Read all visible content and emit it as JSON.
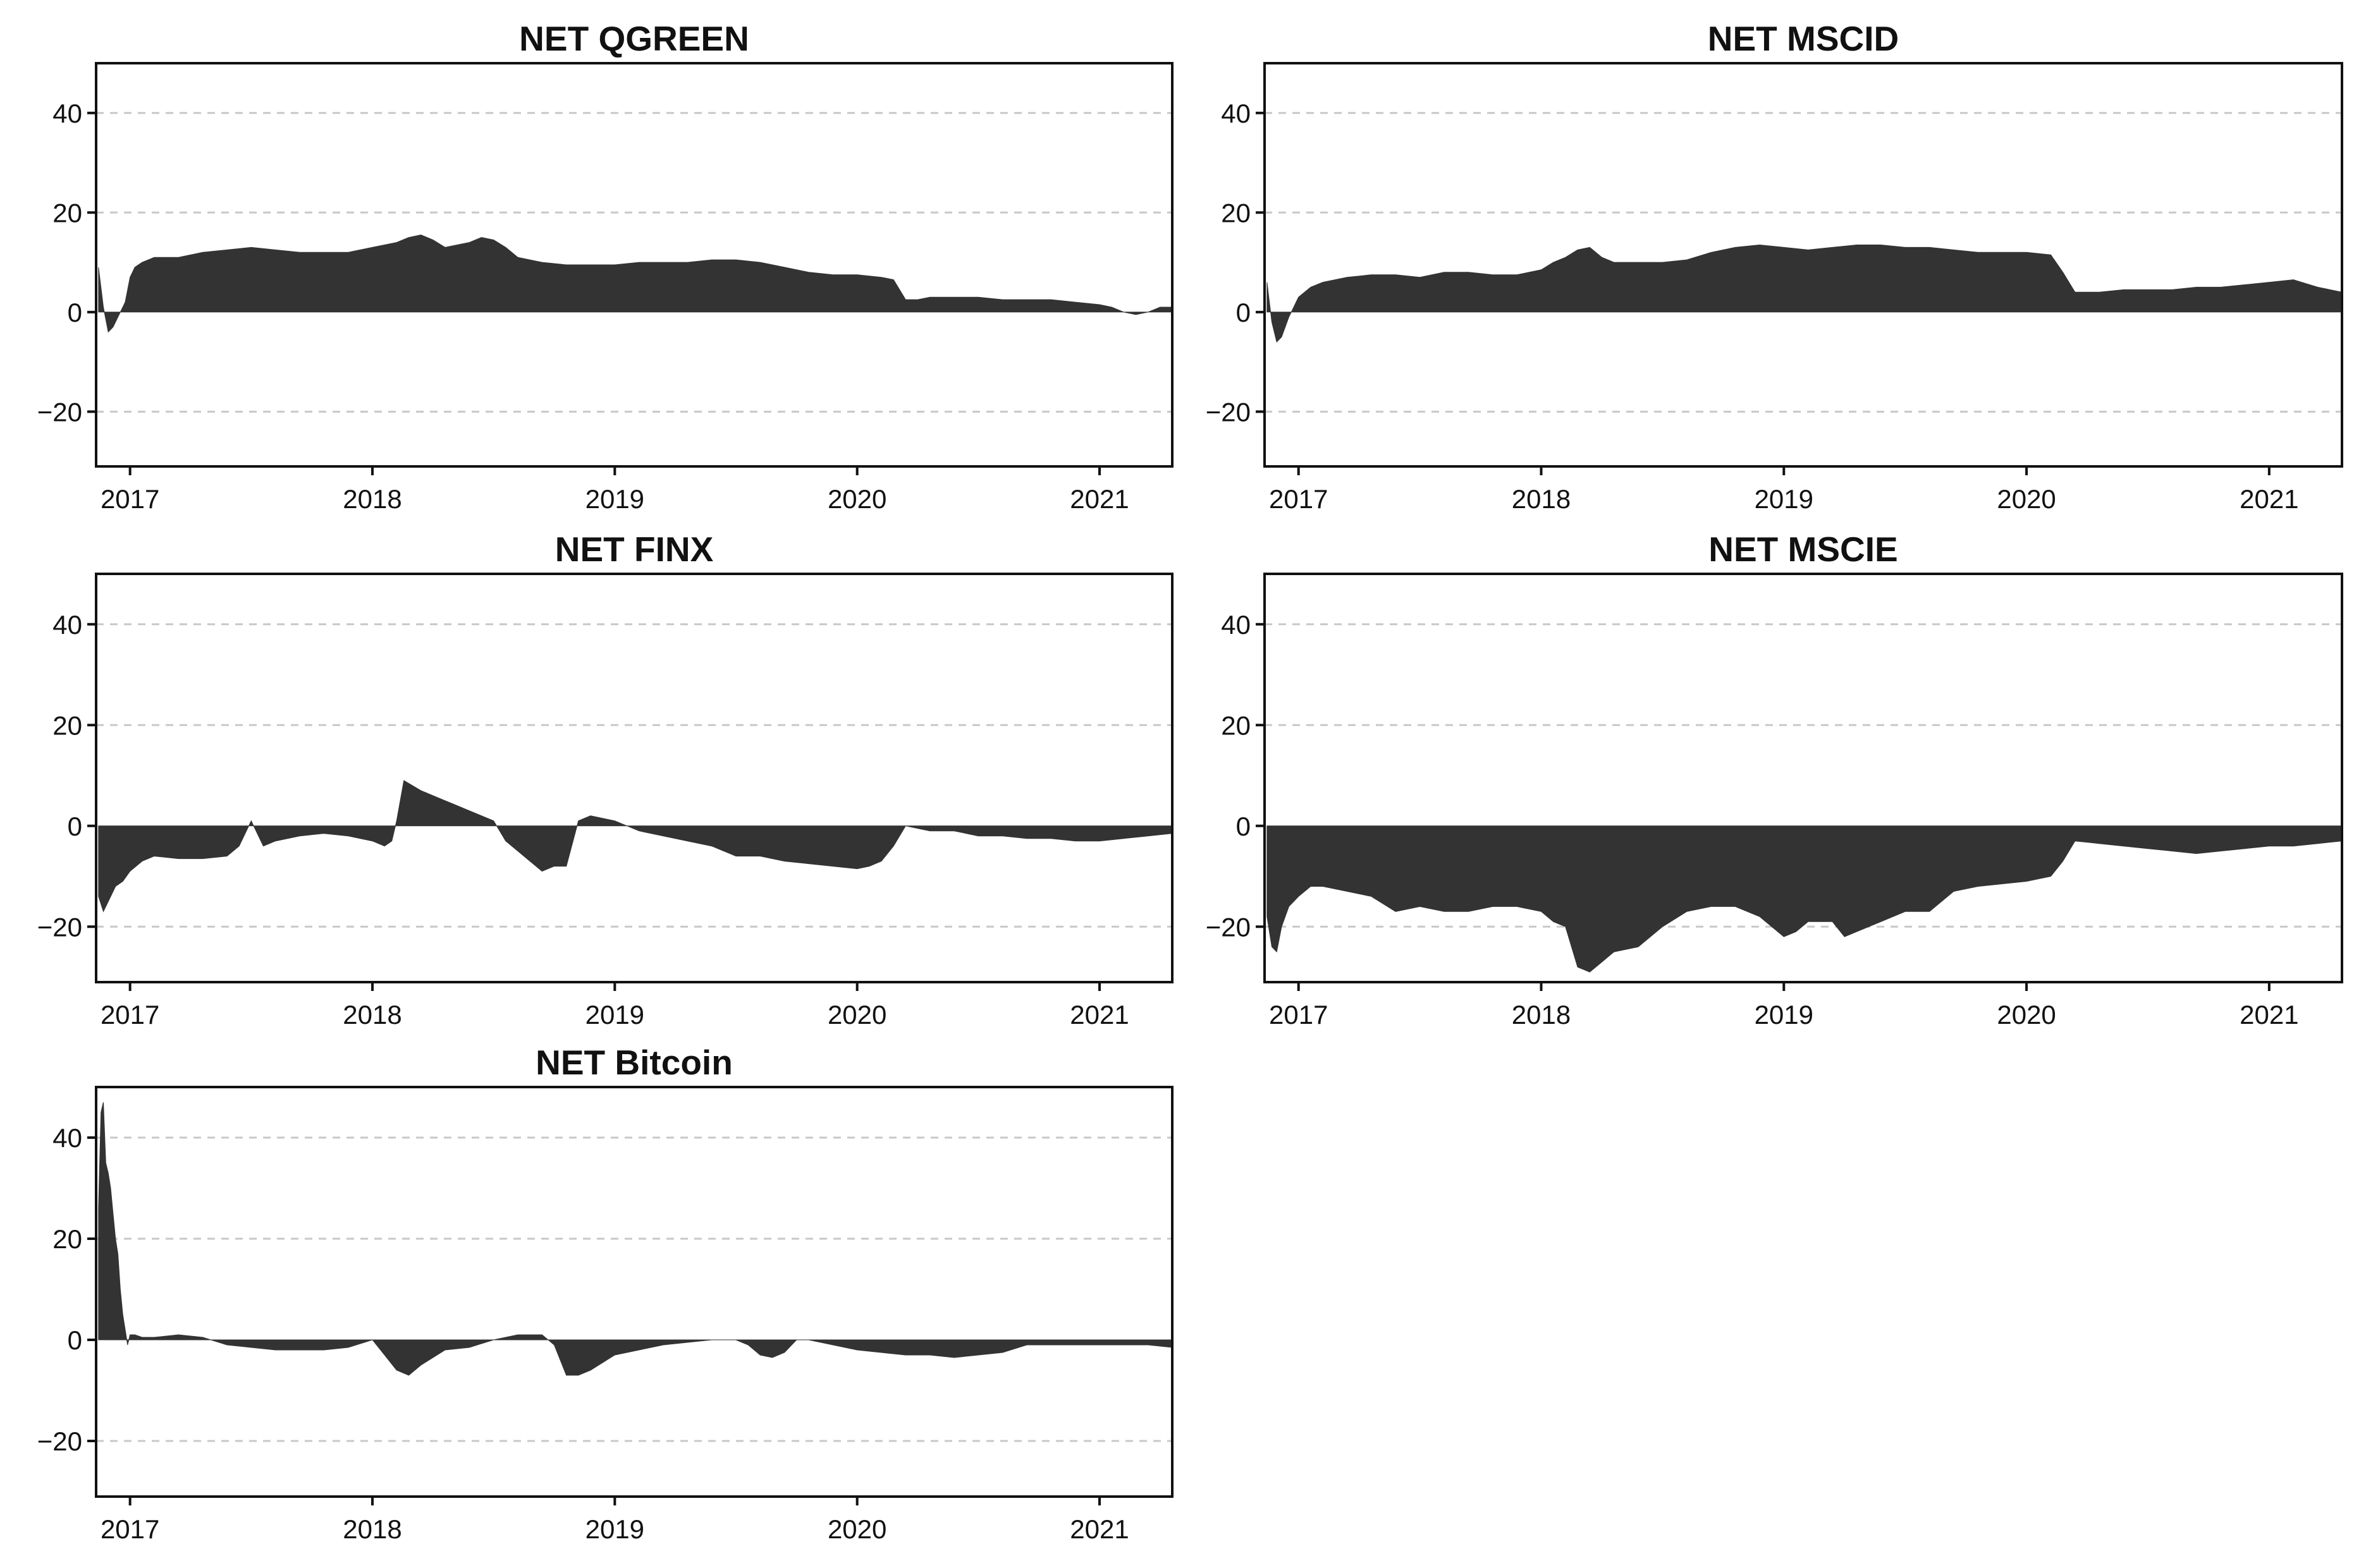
{
  "chart_data": [
    {
      "type": "area",
      "title": "NET QGREEN",
      "xlabel": "",
      "ylabel": "",
      "xlim": [
        2016.86,
        2021.3
      ],
      "ylim": [
        -31,
        50
      ],
      "grid": true,
      "x_ticks": [
        2017,
        2018,
        2019,
        2020,
        2021
      ],
      "x_tick_labels": [
        "2017",
        "2018",
        "2019",
        "2020",
        "2021"
      ],
      "y_ticks": [
        40,
        20,
        0,
        -20
      ],
      "y_tick_labels": [
        "40",
        "20",
        "0",
        "−20"
      ],
      "series": [
        {
          "x": [
            2016.87,
            2016.89,
            2016.91,
            2016.93,
            2016.96,
            2016.98,
            2017.0,
            2017.02,
            2017.05,
            2017.1,
            2017.2,
            2017.3,
            2017.4,
            2017.5,
            2017.6,
            2017.7,
            2017.8,
            2017.9,
            2018.0,
            2018.05,
            2018.1,
            2018.15,
            2018.2,
            2018.25,
            2018.3,
            2018.35,
            2018.4,
            2018.45,
            2018.5,
            2018.55,
            2018.6,
            2018.7,
            2018.8,
            2018.9,
            2019.0,
            2019.1,
            2019.2,
            2019.3,
            2019.4,
            2019.5,
            2019.6,
            2019.7,
            2019.8,
            2019.9,
            2020.0,
            2020.1,
            2020.15,
            2020.2,
            2020.25,
            2020.3,
            2020.4,
            2020.5,
            2020.6,
            2020.7,
            2020.8,
            2020.9,
            2021.0,
            2021.05,
            2021.1,
            2021.15,
            2021.2,
            2021.25,
            2021.3
          ],
          "y": [
            9,
            1,
            -4,
            -3,
            0,
            2,
            7,
            9,
            10,
            11,
            11,
            12,
            12.5,
            13,
            12.5,
            12,
            12,
            12,
            13,
            13.5,
            14,
            15,
            15.5,
            14.5,
            13,
            13.5,
            14,
            15,
            14.5,
            13,
            11,
            10,
            9.5,
            9.5,
            9.5,
            10,
            10,
            10,
            10.5,
            10.5,
            10,
            9,
            8,
            7.5,
            7.5,
            7,
            6.5,
            2.5,
            2.5,
            3,
            3,
            3,
            2.5,
            2.5,
            2.5,
            2,
            1.5,
            1,
            0,
            -0.5,
            0,
            1,
            1
          ]
        }
      ]
    },
    {
      "type": "area",
      "title": "NET MSCID",
      "xlabel": "",
      "ylabel": "",
      "xlim": [
        2016.86,
        2021.3
      ],
      "ylim": [
        -31,
        50
      ],
      "grid": true,
      "x_ticks": [
        2017,
        2018,
        2019,
        2020,
        2021
      ],
      "x_tick_labels": [
        "2017",
        "2018",
        "2019",
        "2020",
        "2021"
      ],
      "y_ticks": [
        40,
        20,
        0,
        -20
      ],
      "y_tick_labels": [
        "40",
        "20",
        "0",
        "−20"
      ],
      "series": [
        {
          "x": [
            2016.87,
            2016.89,
            2016.91,
            2016.93,
            2016.96,
            2016.98,
            2017.0,
            2017.05,
            2017.1,
            2017.2,
            2017.3,
            2017.4,
            2017.5,
            2017.6,
            2017.7,
            2017.8,
            2017.9,
            2018.0,
            2018.05,
            2018.1,
            2018.15,
            2018.2,
            2018.25,
            2018.3,
            2018.4,
            2018.5,
            2018.6,
            2018.7,
            2018.8,
            2018.9,
            2019.0,
            2019.1,
            2019.2,
            2019.3,
            2019.4,
            2019.5,
            2019.6,
            2019.7,
            2019.8,
            2019.9,
            2020.0,
            2020.1,
            2020.15,
            2020.2,
            2020.3,
            2020.4,
            2020.5,
            2020.6,
            2020.7,
            2020.8,
            2020.9,
            2021.0,
            2021.1,
            2021.2,
            2021.3
          ],
          "y": [
            6,
            -2,
            -6,
            -5,
            -1,
            1,
            3,
            5,
            6,
            7,
            7.5,
            7.5,
            7,
            8,
            8,
            7.5,
            7.5,
            8.5,
            10,
            11,
            12.5,
            13,
            11,
            10,
            10,
            10,
            10.5,
            12,
            13,
            13.5,
            13,
            12.5,
            13,
            13.5,
            13.5,
            13,
            13,
            12.5,
            12,
            12,
            12,
            11.5,
            8,
            4,
            4,
            4.5,
            4.5,
            4.5,
            5,
            5,
            5.5,
            6,
            6.5,
            5,
            4
          ]
        }
      ]
    },
    {
      "type": "area",
      "title": "NET FINX",
      "xlabel": "",
      "ylabel": "",
      "xlim": [
        2016.86,
        2021.3
      ],
      "ylim": [
        -31,
        50
      ],
      "grid": true,
      "x_ticks": [
        2017,
        2018,
        2019,
        2020,
        2021
      ],
      "x_tick_labels": [
        "2017",
        "2018",
        "2019",
        "2020",
        "2021"
      ],
      "y_ticks": [
        40,
        20,
        0,
        -20
      ],
      "y_tick_labels": [
        "40",
        "20",
        "0",
        "−20"
      ],
      "series": [
        {
          "x": [
            2016.87,
            2016.89,
            2016.91,
            2016.94,
            2016.97,
            2017.0,
            2017.05,
            2017.1,
            2017.2,
            2017.3,
            2017.4,
            2017.45,
            2017.5,
            2017.55,
            2017.6,
            2017.7,
            2017.8,
            2017.9,
            2018.0,
            2018.05,
            2018.08,
            2018.1,
            2018.13,
            2018.2,
            2018.3,
            2018.4,
            2018.5,
            2018.55,
            2018.6,
            2018.65,
            2018.7,
            2018.75,
            2018.8,
            2018.85,
            2018.9,
            2019.0,
            2019.1,
            2019.2,
            2019.3,
            2019.4,
            2019.5,
            2019.6,
            2019.7,
            2019.8,
            2019.9,
            2020.0,
            2020.05,
            2020.1,
            2020.15,
            2020.2,
            2020.3,
            2020.4,
            2020.5,
            2020.6,
            2020.7,
            2020.8,
            2020.9,
            2021.0,
            2021.1,
            2021.2,
            2021.3
          ],
          "y": [
            -14,
            -17,
            -15,
            -12,
            -11,
            -9,
            -7,
            -6,
            -6.5,
            -6.5,
            -6,
            -4,
            1,
            -4,
            -3,
            -2,
            -1.5,
            -2,
            -3,
            -4,
            -3,
            1,
            9,
            7,
            5,
            3,
            1,
            -3,
            -5,
            -7,
            -9,
            -8,
            -8,
            1,
            2,
            1,
            -1,
            -2,
            -3,
            -4,
            -6,
            -6,
            -7,
            -7.5,
            -8,
            -8.5,
            -8,
            -7,
            -4,
            0,
            -1,
            -1,
            -2,
            -2,
            -2.5,
            -2.5,
            -3,
            -3,
            -2.5,
            -2,
            -1.5
          ]
        }
      ]
    },
    {
      "type": "area",
      "title": "NET MSCIE",
      "xlabel": "",
      "ylabel": "",
      "xlim": [
        2016.86,
        2021.3
      ],
      "ylim": [
        -31,
        50
      ],
      "grid": true,
      "x_ticks": [
        2017,
        2018,
        2019,
        2020,
        2021
      ],
      "x_tick_labels": [
        "2017",
        "2018",
        "2019",
        "2020",
        "2021"
      ],
      "y_ticks": [
        40,
        20,
        0,
        -20
      ],
      "y_tick_labels": [
        "40",
        "20",
        "0",
        "−20"
      ],
      "series": [
        {
          "x": [
            2016.87,
            2016.89,
            2016.91,
            2016.93,
            2016.96,
            2017.0,
            2017.05,
            2017.1,
            2017.2,
            2017.3,
            2017.4,
            2017.5,
            2017.6,
            2017.7,
            2017.8,
            2017.9,
            2018.0,
            2018.05,
            2018.1,
            2018.15,
            2018.2,
            2018.25,
            2018.3,
            2018.4,
            2018.5,
            2018.6,
            2018.7,
            2018.8,
            2018.9,
            2019.0,
            2019.05,
            2019.1,
            2019.2,
            2019.25,
            2019.3,
            2019.4,
            2019.5,
            2019.6,
            2019.7,
            2019.8,
            2019.9,
            2020.0,
            2020.1,
            2020.15,
            2020.2,
            2020.3,
            2020.4,
            2020.5,
            2020.6,
            2020.7,
            2020.8,
            2020.9,
            2021.0,
            2021.1,
            2021.2,
            2021.3
          ],
          "y": [
            -18,
            -24,
            -25,
            -20,
            -16,
            -14,
            -12,
            -12,
            -13,
            -14,
            -17,
            -16,
            -17,
            -17,
            -16,
            -16,
            -17,
            -19,
            -20,
            -28,
            -29,
            -27,
            -25,
            -24,
            -20,
            -17,
            -16,
            -16,
            -18,
            -22,
            -21,
            -19,
            -19,
            -22,
            -21,
            -19,
            -17,
            -17,
            -13,
            -12,
            -11.5,
            -11,
            -10,
            -7,
            -3,
            -3.5,
            -4,
            -4.5,
            -5,
            -5.5,
            -5,
            -4.5,
            -4,
            -4,
            -3.5,
            -3
          ]
        }
      ]
    },
    {
      "type": "area",
      "title": "NET Bitcoin",
      "xlabel": "",
      "ylabel": "",
      "xlim": [
        2016.86,
        2021.3
      ],
      "ylim": [
        -31,
        50
      ],
      "grid": true,
      "x_ticks": [
        2017,
        2018,
        2019,
        2020,
        2021
      ],
      "x_tick_labels": [
        "2017",
        "2018",
        "2019",
        "2020",
        "2021"
      ],
      "y_ticks": [
        40,
        20,
        0,
        -20
      ],
      "y_tick_labels": [
        "40",
        "20",
        "0",
        "−20"
      ],
      "series": [
        {
          "x": [
            2016.87,
            2016.88,
            2016.89,
            2016.9,
            2016.91,
            2016.92,
            2016.93,
            2016.94,
            2016.95,
            2016.96,
            2016.97,
            2016.98,
            2016.99,
            2017.0,
            2017.02,
            2017.05,
            2017.1,
            2017.2,
            2017.3,
            2017.4,
            2017.5,
            2017.6,
            2017.7,
            2017.8,
            2017.9,
            2018.0,
            2018.05,
            2018.1,
            2018.15,
            2018.2,
            2018.3,
            2018.4,
            2018.5,
            2018.6,
            2018.7,
            2018.75,
            2018.8,
            2018.85,
            2018.9,
            2019.0,
            2019.1,
            2019.2,
            2019.3,
            2019.4,
            2019.5,
            2019.55,
            2019.6,
            2019.65,
            2019.7,
            2019.75,
            2019.8,
            2019.9,
            2020.0,
            2020.1,
            2020.2,
            2020.3,
            2020.4,
            2020.5,
            2020.6,
            2020.7,
            2020.8,
            2020.9,
            2021.0,
            2021.1,
            2021.2,
            2021.3
          ],
          "y": [
            26,
            45,
            47,
            35,
            33,
            30,
            25,
            20,
            17,
            10,
            5,
            2,
            -1,
            1,
            1,
            0.5,
            0.5,
            1,
            0.5,
            -1,
            -1.5,
            -2,
            -2,
            -2,
            -1.5,
            0,
            -3,
            -6,
            -7,
            -5,
            -2,
            -1.5,
            0,
            1,
            1,
            -1,
            -7,
            -7,
            -6,
            -3,
            -2,
            -1,
            -0.5,
            0,
            0,
            -1,
            -3,
            -3.5,
            -2.5,
            0,
            0,
            -1,
            -2,
            -2.5,
            -3,
            -3,
            -3.5,
            -3,
            -2.5,
            -1,
            -1,
            -1,
            -1,
            -1,
            -1,
            -1.5
          ]
        }
      ]
    }
  ]
}
